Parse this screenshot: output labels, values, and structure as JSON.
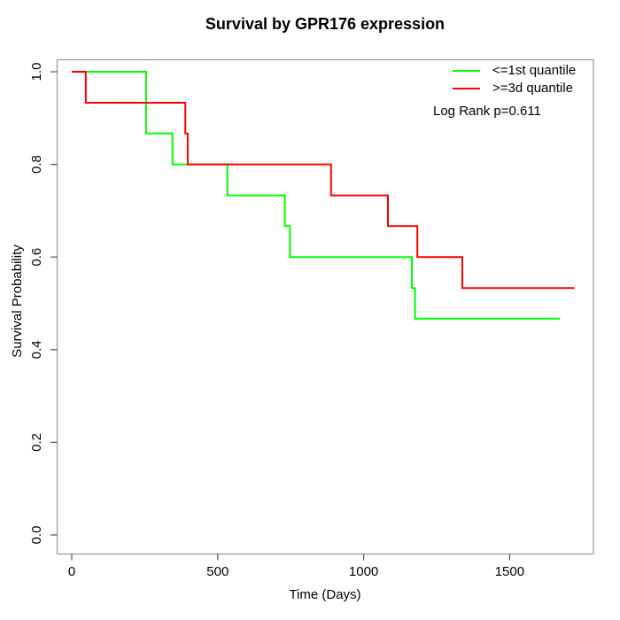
{
  "chart_data": {
    "type": "line",
    "subtype": "kaplan-meier-step",
    "title": "Survival by GPR176 expression",
    "xlabel": "Time (Days)",
    "ylabel": "Survival Probability",
    "x_ticks": [
      0,
      500,
      1000,
      1500
    ],
    "x_tick_labels": [
      "0",
      "500",
      "1000",
      "1500"
    ],
    "y_ticks": [
      0.0,
      0.2,
      0.4,
      0.6,
      0.8,
      1.0
    ],
    "y_tick_labels": [
      "0.0",
      "0.2",
      "0.4",
      "0.6",
      "0.8",
      "1.0"
    ],
    "xlim": [
      -52,
      1788
    ],
    "ylim": [
      -0.04,
      1.03
    ],
    "grid": false,
    "frame_color": "#999999",
    "tick_color": "#555555",
    "text_color": "#000000",
    "background": "#FFFFFF",
    "legend": {
      "position": "topright",
      "entries": [
        {
          "label": "<=1st quantile",
          "color": "#00FF00"
        },
        {
          "label": ">=3d quantile",
          "color": "#FF0000"
        }
      ]
    },
    "annotation": "Log Rank p=0.611",
    "series": [
      {
        "name": "<=1st quantile",
        "color": "#00FF00",
        "points": [
          [
            0,
            1.0
          ],
          [
            255,
            0.867
          ],
          [
            345,
            0.8
          ],
          [
            533,
            0.733
          ],
          [
            730,
            0.667
          ],
          [
            748,
            0.6
          ],
          [
            1165,
            0.533
          ],
          [
            1176,
            0.467
          ]
        ],
        "end_time": 1672
      },
      {
        "name": ">=3d quantile",
        "color": "#FF0000",
        "points": [
          [
            0,
            1.0
          ],
          [
            48,
            0.933
          ],
          [
            389,
            0.867
          ],
          [
            397,
            0.8
          ],
          [
            888,
            0.733
          ],
          [
            1083,
            0.667
          ],
          [
            1184,
            0.6
          ],
          [
            1338,
            0.533
          ]
        ],
        "end_time": 1722
      }
    ]
  }
}
